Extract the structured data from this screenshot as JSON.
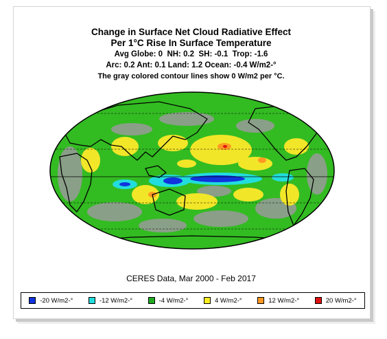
{
  "title": "Change in Surface Net Cloud Radiative Effect",
  "subtitle": "Per 1°C Rise In Surface Temperature",
  "stats_line1": "Avg Globe: 0  NH: 0.2  SH: -0.1  Trop: -1.6",
  "stats_line2": "Arc: 0.2  Ant: 0.1  Land: 1.2 Ocean: -0.4 W/m2-°",
  "note": "The gray colored contour lines show 0 W/m2 per °C.",
  "source": "CERES Data, Mar 2000 - Feb 2017",
  "colors": {
    "ocean_base": "#33bb22",
    "neutral_gray": "#999999",
    "land_outline": "#000000"
  },
  "legend": [
    {
      "label": "-20 W/m2-°",
      "color": "#1133dd"
    },
    {
      "label": "-12 W/m2-°",
      "color": "#22dddd"
    },
    {
      "label": "-4 W/m2-°",
      "color": "#22aa22"
    },
    {
      "label": "4 W/m2-°",
      "color": "#ffee22"
    },
    {
      "label": "12 W/m2-°",
      "color": "#ff9922"
    },
    {
      "label": "20 W/m2-°",
      "color": "#dd1111"
    }
  ]
}
